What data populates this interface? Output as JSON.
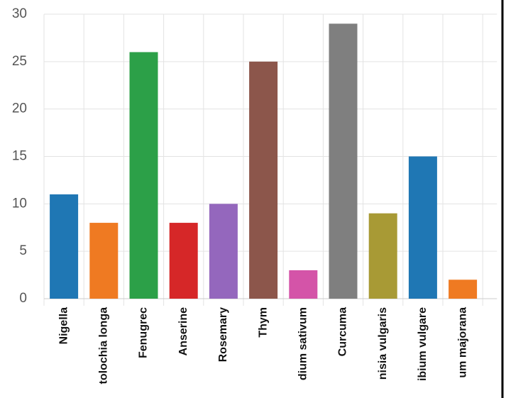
{
  "chart_data": {
    "type": "bar",
    "categories": [
      "Nigella",
      "tolochia longa",
      "Fenugrec",
      "Anserine",
      "Rosemary",
      "Thym",
      "dium sativum",
      "Curcuma",
      "nisia vulgaris",
      "ibium vulgare",
      "um majorana"
    ],
    "values": [
      11,
      8,
      26,
      8,
      10,
      25,
      3,
      29,
      9,
      15,
      2
    ],
    "colors": [
      "#1f77b4",
      "#ef7a22",
      "#2ca048",
      "#d62728",
      "#9467bd",
      "#8c564b",
      "#d454a8",
      "#7f7f7f",
      "#a89a35",
      "#1f77b4",
      "#ef7a22"
    ],
    "ylim": [
      0,
      30
    ],
    "yticks": [
      0,
      5,
      10,
      15,
      20,
      25,
      30
    ],
    "grid": true
  }
}
